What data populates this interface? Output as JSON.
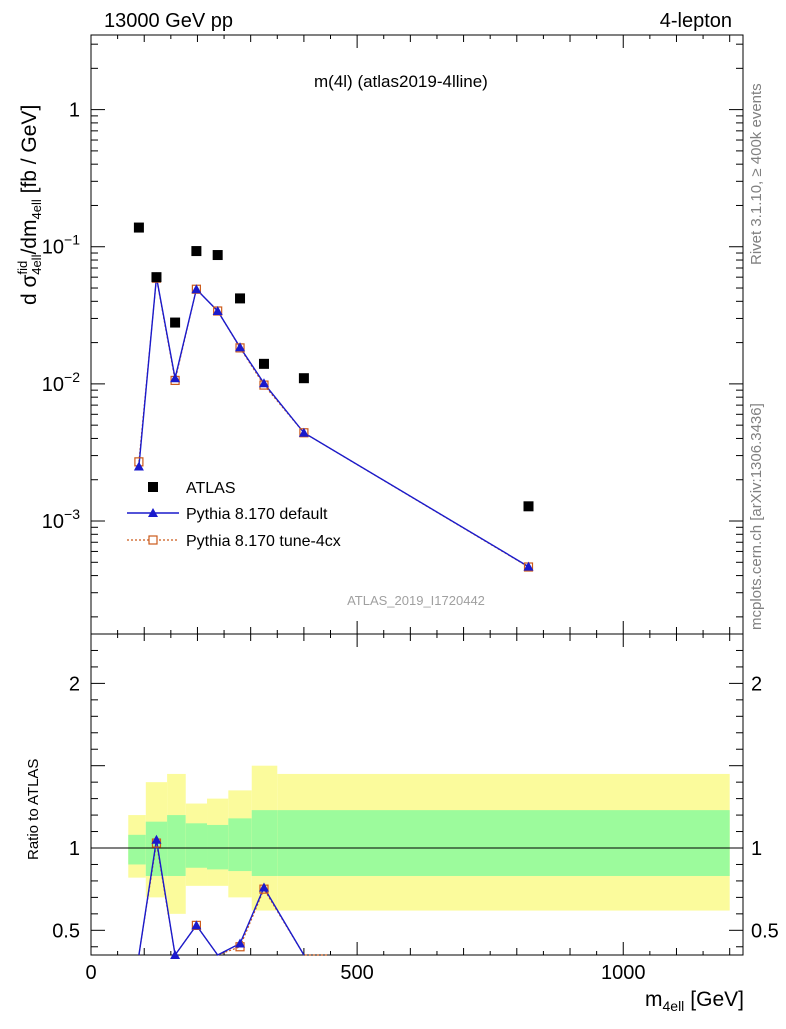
{
  "header": {
    "energy_label": "13000 GeV pp",
    "channel_label": "4-lepton"
  },
  "side": {
    "rivet_label": "Rivet 3.1.10, ≥ 400k events",
    "source_label": "mcplots.cern.ch [arXiv:1306.3436]"
  },
  "chart_data": {
    "type": "line",
    "title": "m(4l) (atlas2019-4lline)",
    "analysis_id": "ATLAS_2019_I1720442",
    "xlabel_base": "m",
    "xlabel_sub": "4ell",
    "xlabel_unit": "[GeV]",
    "ylabel": "d σᶠid4ell/dm4ell [fb / GeV]",
    "ylabel_parts": {
      "p1": "d σ",
      "p1_sup": "fid",
      "p1_sub": "4ell",
      "p2": "/dm",
      "p2_sub": "4ell",
      "p3": " [fb / GeV]"
    },
    "ratio_ylabel": "Ratio to ATLAS",
    "xlim": [
      0,
      1225
    ],
    "ylim_log": [
      0.00015,
      3.5
    ],
    "ratio_ylim": [
      0.35,
      2.3
    ],
    "x_ticks": [
      0,
      500,
      1000
    ],
    "x_tick_labels": [
      "0",
      "500",
      "1000"
    ],
    "y_ticks": [
      1,
      0.1,
      0.01,
      0.001
    ],
    "y_tick_labels": [
      {
        "base": "1",
        "exp": ""
      },
      {
        "base": "10",
        "exp": "−1"
      },
      {
        "base": "10",
        "exp": "−2"
      },
      {
        "base": "10",
        "exp": "−3"
      }
    ],
    "ratio_ticks": [
      0.5,
      1,
      2
    ],
    "ratio_tick_labels": [
      "0.5",
      "1",
      "2"
    ],
    "legend": {
      "placement": "lower-left",
      "entries": [
        "ATLAS",
        "Pythia 8.170 default",
        "Pythia 8.170 tune-4cx"
      ]
    },
    "data": {
      "name": "ATLAS",
      "color": "#000000",
      "x": [
        90,
        123,
        158,
        198,
        238,
        280,
        325,
        400,
        822
      ],
      "y": [
        0.138,
        0.06,
        0.028,
        0.093,
        0.087,
        0.042,
        0.014,
        0.011,
        0.00128
      ]
    },
    "series": [
      {
        "name": "Pythia 8.170 default",
        "color": "#1a1acc",
        "x": [
          90,
          123,
          158,
          198,
          238,
          280,
          325,
          400,
          822
        ],
        "y": [
          0.0025,
          0.06,
          0.011,
          0.049,
          0.034,
          0.0185,
          0.0101,
          0.0044,
          0.000465
        ]
      },
      {
        "name": "Pythia 8.170 tune-4cx",
        "color": "#cc5a1a",
        "x": [
          90,
          123,
          158,
          198,
          238,
          280,
          325,
          400,
          822
        ],
        "y": [
          0.0027,
          0.059,
          0.0106,
          0.049,
          0.034,
          0.0183,
          0.0098,
          0.0044,
          0.000462
        ]
      }
    ],
    "ratio": {
      "reference": 1,
      "band_edges": [
        70,
        103,
        143,
        178,
        218,
        258,
        302,
        350,
        1200
      ],
      "green_lo": [
        0.9,
        0.83,
        0.83,
        0.88,
        0.87,
        0.86,
        0.83,
        0.83
      ],
      "green_hi": [
        1.08,
        1.16,
        1.2,
        1.15,
        1.14,
        1.18,
        1.23,
        1.23
      ],
      "yellow_lo": [
        0.82,
        0.7,
        0.6,
        0.77,
        0.77,
        0.7,
        0.62,
        0.62
      ],
      "yellow_hi": [
        1.2,
        1.4,
        1.45,
        1.27,
        1.3,
        1.35,
        1.5,
        1.45
      ],
      "default_x": [
        90,
        123,
        158,
        198,
        238,
        280,
        325,
        400
      ],
      "default_y": [
        0.018,
        1.05,
        0.35,
        0.53,
        0.34,
        0.42,
        0.76,
        0.34
      ],
      "tune_x": [
        90,
        123,
        158,
        198,
        238,
        280,
        325,
        400,
        445
      ],
      "tune_y": [
        0.02,
        1.03,
        0.34,
        0.53,
        0.34,
        0.4,
        0.75,
        0.34,
        0.34
      ]
    },
    "colors": {
      "green_band": "#9cfb9c",
      "yellow_band": "#fbfb9c"
    }
  }
}
